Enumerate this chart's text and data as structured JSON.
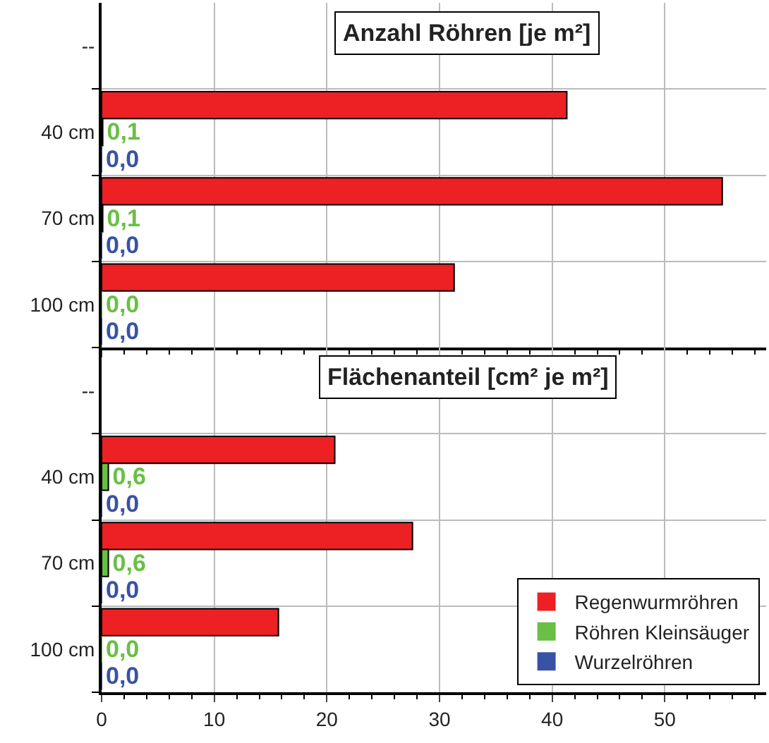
{
  "chart_data": [
    {
      "type": "bar",
      "orientation": "horizontal",
      "title": "Anzahl Röhren [je m²]",
      "categories": [
        "--",
        "40 cm",
        "70 cm",
        "100 cm"
      ],
      "series": [
        {
          "color": "#ed2024",
          "values": [
            null,
            41.3,
            55.1,
            31.3
          ]
        },
        {
          "color": "#6abf45",
          "values": [
            null,
            0.1,
            0.1,
            0.0
          ],
          "value_labels": [
            null,
            "0,1",
            "0,1",
            "0,0"
          ]
        },
        {
          "color": "#3953a4",
          "values": [
            null,
            0.0,
            0.0,
            0.0
          ],
          "value_labels": [
            null,
            "0,0",
            "0,0",
            "0,0"
          ]
        }
      ],
      "xlim": [
        0,
        59
      ],
      "xticks": [
        0,
        10,
        20,
        30,
        40,
        50
      ],
      "grid": true,
      "tick_labels": "y",
      "legend": false
    },
    {
      "type": "bar",
      "orientation": "horizontal",
      "title": "Flächenanteil [cm² je m²]",
      "categories": [
        "--",
        "40 cm",
        "70 cm",
        "100 cm"
      ],
      "series": [
        {
          "name": "Regenwurmröhren",
          "color": "#ed2024",
          "values": [
            null,
            20.7,
            27.6,
            15.7
          ]
        },
        {
          "name": "Röhren Kleinsäuger",
          "color": "#6abf45",
          "values": [
            null,
            0.6,
            0.6,
            0.0
          ],
          "value_labels": [
            null,
            "0,6",
            "0,6",
            "0,0"
          ]
        },
        {
          "name": "Wurzelröhren",
          "color": "#3953a4",
          "values": [
            null,
            0.0,
            0.0,
            0.0
          ],
          "value_labels": [
            null,
            "0,0",
            "0,0",
            "0,0"
          ]
        }
      ],
      "xlim": [
        0,
        59
      ],
      "xticks": [
        0,
        10,
        20,
        30,
        40,
        50
      ],
      "grid": true,
      "legend": "bottom right"
    }
  ]
}
